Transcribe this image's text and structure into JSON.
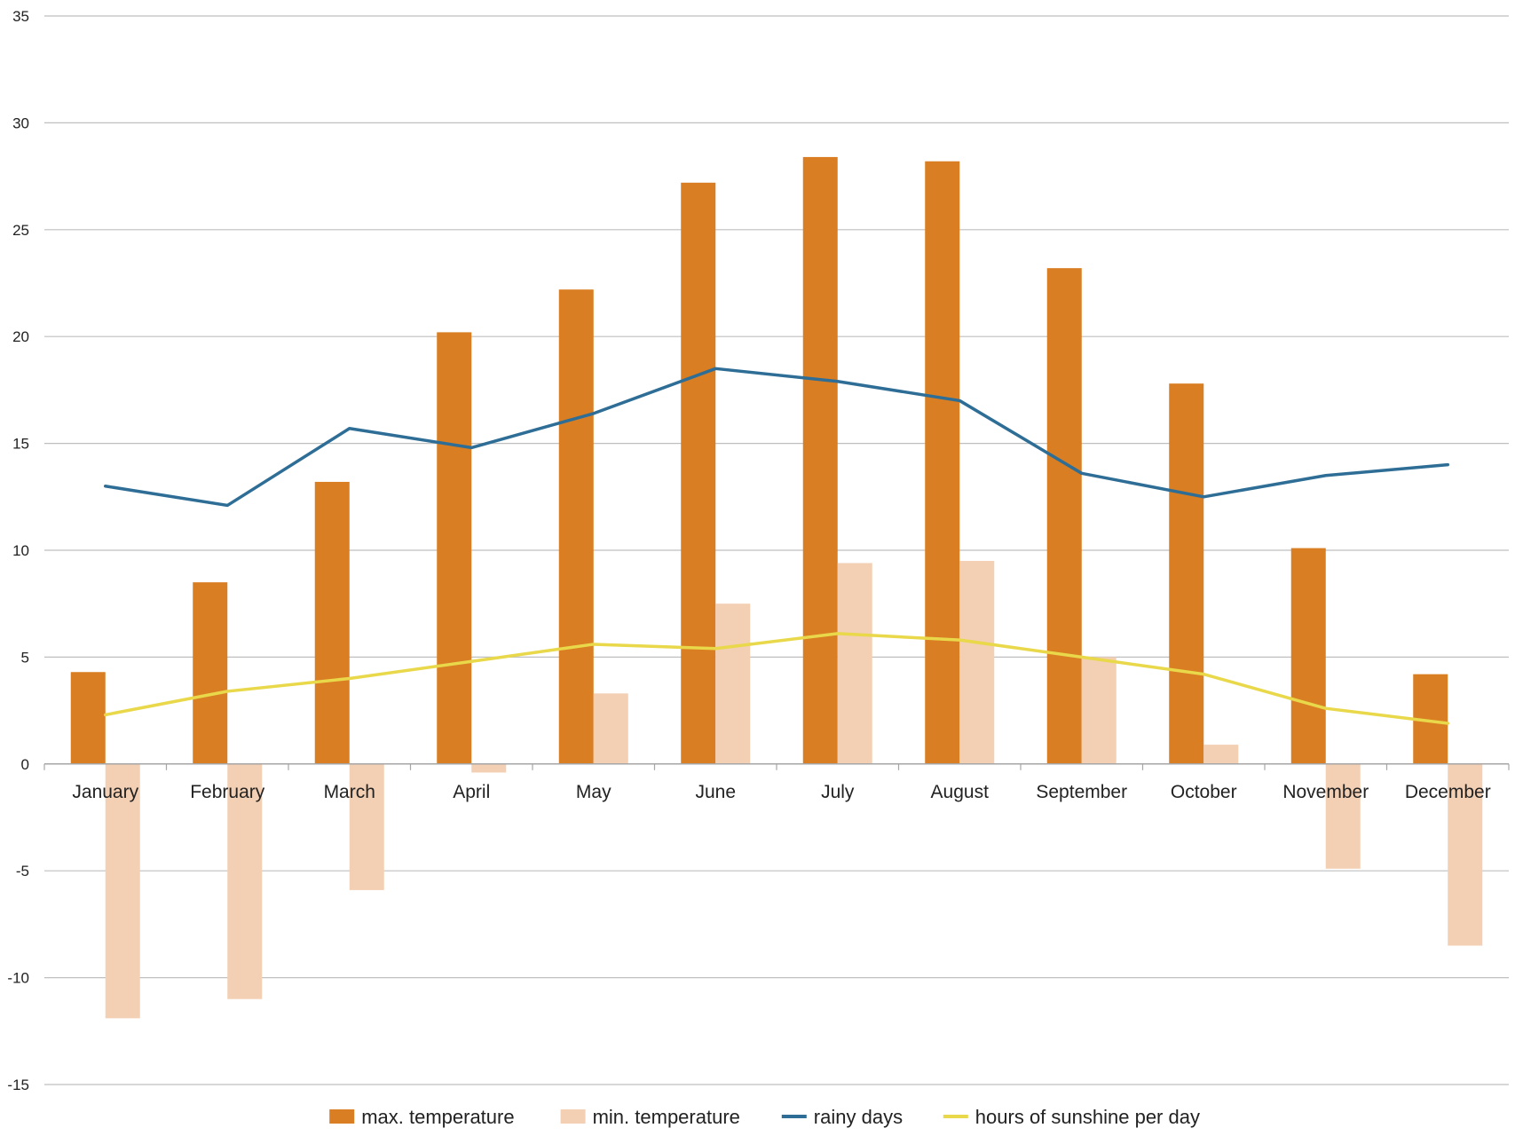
{
  "chart_data": {
    "type": "bar",
    "title": "",
    "xlabel": "",
    "ylabel": "",
    "ylim": [
      -15,
      35
    ],
    "yticks": [
      35,
      30,
      25,
      20,
      15,
      10,
      5,
      0,
      -5,
      -10,
      -15
    ],
    "grid": true,
    "legend_position": "bottom",
    "categories": [
      "January",
      "February",
      "March",
      "April",
      "May",
      "June",
      "July",
      "August",
      "September",
      "October",
      "November",
      "December"
    ],
    "series": [
      {
        "name": "max.  temperature",
        "kind": "bar",
        "color": "#D97E22",
        "values": [
          4.3,
          8.5,
          13.2,
          20.2,
          22.2,
          27.2,
          28.4,
          28.2,
          23.2,
          17.8,
          10.1,
          4.2
        ]
      },
      {
        "name": "min. temperature",
        "kind": "bar",
        "color": "#F3CFB3",
        "values": [
          -11.9,
          -11.0,
          -5.9,
          -0.4,
          3.3,
          7.5,
          9.4,
          9.5,
          5.0,
          0.9,
          -4.9,
          -8.5
        ]
      },
      {
        "name": "rainy days",
        "kind": "line",
        "color": "#2E6E96",
        "values": [
          13.0,
          12.1,
          15.7,
          14.8,
          16.4,
          18.5,
          17.9,
          17.0,
          13.6,
          12.5,
          13.5,
          14.0
        ]
      },
      {
        "name": "hours of sunshine per day",
        "kind": "line",
        "color": "#E8D84A",
        "values": [
          2.3,
          3.4,
          4.0,
          4.8,
          5.6,
          5.4,
          6.1,
          5.8,
          5.0,
          4.2,
          2.6,
          1.9
        ]
      }
    ]
  }
}
